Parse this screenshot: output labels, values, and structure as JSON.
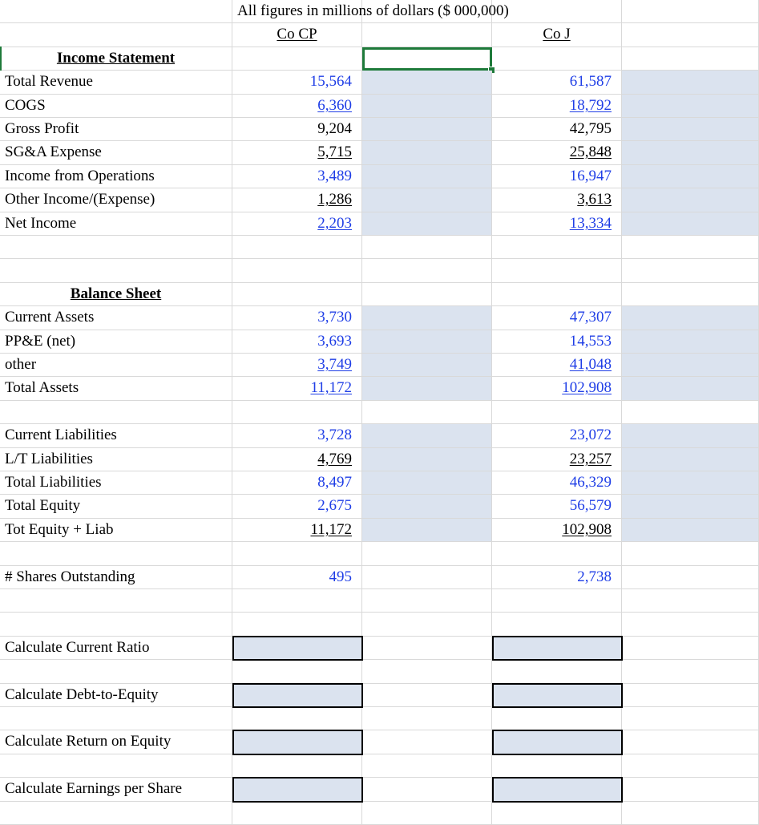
{
  "header": {
    "units": "All figures in millions of dollars ($ 000,000)",
    "company_a": "Co CP",
    "company_b": "Co J"
  },
  "income_statement": {
    "title": "Income Statement",
    "rows": [
      {
        "label": "Total Revenue",
        "a": "15,564",
        "b": "61,587",
        "a_blue": true,
        "b_blue": true,
        "a_u": false,
        "b_u": false
      },
      {
        "label": "COGS",
        "a": "6,360",
        "b": "18,792",
        "a_blue": true,
        "b_blue": true,
        "a_u": true,
        "b_u": true
      },
      {
        "label": "Gross Profit",
        "a": "9,204",
        "b": "42,795",
        "a_blue": false,
        "b_blue": false,
        "a_u": false,
        "b_u": false
      },
      {
        "label": "SG&A Expense",
        "a": "5,715",
        "b": "25,848",
        "a_blue": false,
        "b_blue": false,
        "a_u": true,
        "b_u": true
      },
      {
        "label": "Income from Operations",
        "a": "3,489",
        "b": "16,947",
        "a_blue": true,
        "b_blue": true,
        "a_u": false,
        "b_u": false
      },
      {
        "label": "Other Income/(Expense)",
        "a": "1,286",
        "b": "3,613",
        "a_blue": false,
        "b_blue": false,
        "a_u": true,
        "b_u": true
      },
      {
        "label": "Net Income",
        "a": "2,203",
        "b": "13,334",
        "a_blue": true,
        "b_blue": true,
        "a_u": true,
        "b_u": true
      }
    ]
  },
  "balance_sheet": {
    "title": "Balance Sheet",
    "assets": [
      {
        "label": "Current Assets",
        "a": "3,730",
        "b": "47,307",
        "a_blue": true,
        "b_blue": true,
        "a_u": false,
        "b_u": false
      },
      {
        "label": "PP&E (net)",
        "a": "3,693",
        "b": "14,553",
        "a_blue": true,
        "b_blue": true,
        "a_u": false,
        "b_u": false
      },
      {
        "label": "other",
        "a": "3,749",
        "b": "41,048",
        "a_blue": true,
        "b_blue": true,
        "a_u": true,
        "b_u": true
      },
      {
        "label": "Total Assets",
        "a": "11,172",
        "b": "102,908",
        "a_blue": true,
        "b_blue": true,
        "a_u": true,
        "b_u": true
      }
    ],
    "liabilities": [
      {
        "label": "Current Liabilities",
        "a": "3,728",
        "b": "23,072",
        "a_blue": true,
        "b_blue": true,
        "a_u": false,
        "b_u": false
      },
      {
        "label": "L/T Liabilities",
        "a": "4,769",
        "b": "23,257",
        "a_blue": false,
        "b_blue": false,
        "a_u": true,
        "b_u": true
      },
      {
        "label": "Total Liabilities",
        "a": "8,497",
        "b": "46,329",
        "a_blue": true,
        "b_blue": true,
        "a_u": false,
        "b_u": false
      },
      {
        "label": "Total Equity",
        "a": "2,675",
        "b": "56,579",
        "a_blue": true,
        "b_blue": true,
        "a_u": false,
        "b_u": false
      },
      {
        "label": "Tot Equity + Liab",
        "a": "11,172",
        "b": "102,908",
        "a_blue": false,
        "b_blue": false,
        "a_u": true,
        "b_u": true
      }
    ]
  },
  "shares": {
    "label": "# Shares Outstanding",
    "a": "495",
    "b": "2,738"
  },
  "calculations": [
    {
      "label": "Calculate Current Ratio"
    },
    {
      "label": "Calculate Debt-to-Equity"
    },
    {
      "label": "Calculate Return on Equity"
    },
    {
      "label": "Calculate Earnings per Share"
    }
  ],
  "colors": {
    "input_blue": "#1f3ee6",
    "shade": "#dbe3ef",
    "selection": "#1e7a3a",
    "gridline": "#d9d9d9"
  }
}
